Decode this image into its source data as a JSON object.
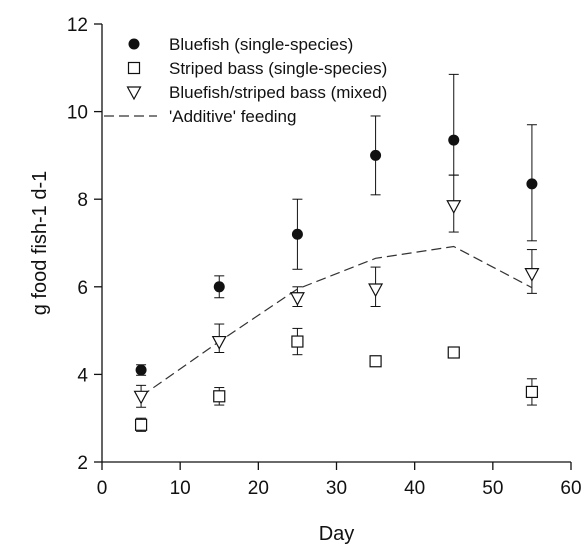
{
  "chart_data": {
    "type": "scatter",
    "title": "",
    "xlabel": "Day",
    "ylabel": "g food fish-1 d-1",
    "xlim": [
      0,
      60
    ],
    "ylim": [
      2,
      12
    ],
    "xticks": [
      0,
      10,
      20,
      30,
      40,
      50,
      60
    ],
    "yticks": [
      2,
      4,
      6,
      8,
      10,
      12
    ],
    "grid": false,
    "legend_position": "top-left",
    "series": [
      {
        "name": "Bluefish (single-species)",
        "marker": "filled-circle",
        "x": [
          5,
          15,
          25,
          35,
          45,
          55
        ],
        "y": [
          4.1,
          6.0,
          7.2,
          9.0,
          9.35,
          8.35
        ],
        "err_low": [
          0.12,
          0.25,
          0.8,
          0.9,
          0.8,
          1.3
        ],
        "err_high": [
          0.12,
          0.25,
          0.8,
          0.9,
          1.5,
          1.35
        ]
      },
      {
        "name": "Striped bass (single-species)",
        "marker": "open-square",
        "x": [
          5,
          15,
          25,
          35,
          45,
          55
        ],
        "y": [
          2.85,
          3.5,
          4.75,
          4.3,
          4.5,
          3.6
        ],
        "err_low": [
          0.15,
          0.2,
          0.3,
          0.08,
          0.12,
          0.3
        ],
        "err_high": [
          0.15,
          0.2,
          0.3,
          0.08,
          0.12,
          0.3
        ]
      },
      {
        "name": "Bluefish/striped bass (mixed)",
        "marker": "open-triangle-down",
        "x": [
          5,
          15,
          25,
          35,
          45,
          55
        ],
        "y": [
          3.5,
          4.75,
          5.75,
          5.95,
          7.85,
          6.3
        ],
        "err_low": [
          0.25,
          0.25,
          0.2,
          0.4,
          0.6,
          0.45
        ],
        "err_high": [
          0.25,
          0.4,
          0.25,
          0.5,
          0.7,
          0.55
        ]
      },
      {
        "name": "'Additive' feeding",
        "marker": "dashed-line",
        "x": [
          5,
          15,
          25,
          35,
          45,
          55
        ],
        "y": [
          3.5,
          4.75,
          5.95,
          6.65,
          6.92,
          5.98
        ]
      }
    ]
  }
}
